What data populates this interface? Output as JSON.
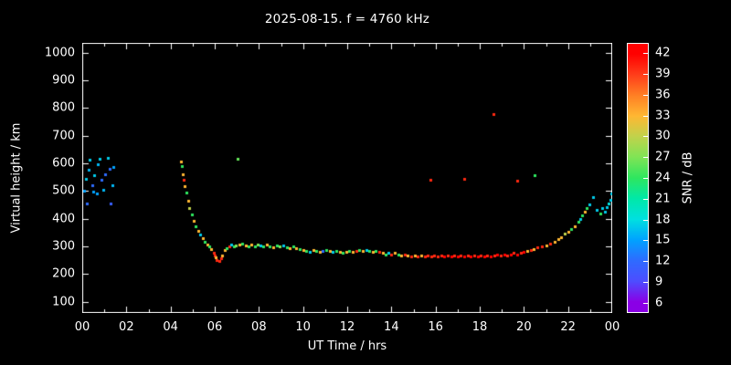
{
  "title": "2025-08-15. f = 4760 kHz",
  "colors": {
    "background": "#000000",
    "foreground": "#ffffff"
  },
  "axes": {
    "x": {
      "label": "UT Time / hrs",
      "range": [
        0,
        24
      ],
      "ticks": [
        {
          "v": 0,
          "label": "00"
        },
        {
          "v": 2,
          "label": "02"
        },
        {
          "v": 4,
          "label": "04"
        },
        {
          "v": 6,
          "label": "06"
        },
        {
          "v": 8,
          "label": "08"
        },
        {
          "v": 10,
          "label": "10"
        },
        {
          "v": 12,
          "label": "12"
        },
        {
          "v": 14,
          "label": "14"
        },
        {
          "v": 16,
          "label": "16"
        },
        {
          "v": 18,
          "label": "18"
        },
        {
          "v": 20,
          "label": "20"
        },
        {
          "v": 22,
          "label": "22"
        },
        {
          "v": 24,
          "label": "00"
        }
      ],
      "minor_tick_step": 1
    },
    "y": {
      "label": "Virtual height / km",
      "range": [
        60,
        1035
      ],
      "ticks": [
        100,
        200,
        300,
        400,
        500,
        600,
        700,
        800,
        900,
        1000
      ]
    }
  },
  "colorbar": {
    "label": "SNR / dB",
    "range": [
      4.5,
      43.5
    ],
    "ticks": [
      6,
      9,
      12,
      15,
      18,
      21,
      24,
      27,
      30,
      33,
      36,
      39,
      42
    ],
    "stops": [
      [
        6,
        "#8a00e6"
      ],
      [
        9,
        "#4d4dff"
      ],
      [
        12,
        "#2e6bff"
      ],
      [
        15,
        "#00a2ff"
      ],
      [
        18,
        "#00e0e0"
      ],
      [
        21,
        "#00e8a8"
      ],
      [
        24,
        "#2ee65f"
      ],
      [
        27,
        "#7fe455"
      ],
      [
        30,
        "#c0d24b"
      ],
      [
        33,
        "#ffb732"
      ],
      [
        36,
        "#ff7f24"
      ],
      [
        39,
        "#ff3d1a"
      ],
      [
        42,
        "#ff0000"
      ]
    ]
  },
  "chart_data": {
    "type": "scatter",
    "title": "2025-08-15. f = 4760 kHz",
    "xlabel": "UT Time / hrs",
    "ylabel": "Virtual height / km",
    "colorbar_label": "SNR / dB",
    "xlim": [
      0,
      24
    ],
    "ylim": [
      60,
      1035
    ],
    "snr_lim": [
      4.5,
      43.5
    ],
    "grid": false,
    "point_format": "[ut_hours, virtual_height_km, snr_db]",
    "points": [
      [
        0.1,
        500,
        15
      ],
      [
        0.15,
        545,
        17
      ],
      [
        0.2,
        455,
        12
      ],
      [
        0.3,
        578,
        16
      ],
      [
        0.35,
        612,
        17
      ],
      [
        0.45,
        520,
        12
      ],
      [
        0.5,
        498,
        15
      ],
      [
        0.55,
        556,
        17
      ],
      [
        0.65,
        490,
        15
      ],
      [
        0.7,
        596,
        16
      ],
      [
        0.78,
        616,
        17
      ],
      [
        0.85,
        540,
        12
      ],
      [
        0.95,
        505,
        16
      ],
      [
        1.05,
        560,
        12
      ],
      [
        1.15,
        620,
        17
      ],
      [
        1.25,
        582,
        12
      ],
      [
        1.3,
        455,
        11
      ],
      [
        1.35,
        522,
        16
      ],
      [
        1.4,
        588,
        15
      ],
      [
        4.45,
        608,
        33
      ],
      [
        4.5,
        590,
        24
      ],
      [
        4.55,
        562,
        33
      ],
      [
        4.6,
        540,
        40
      ],
      [
        4.62,
        518,
        33
      ],
      [
        4.7,
        494,
        24
      ],
      [
        4.78,
        465,
        33
      ],
      [
        4.85,
        440,
        30
      ],
      [
        4.95,
        415,
        24
      ],
      [
        5.05,
        392,
        33
      ],
      [
        5.15,
        372,
        24
      ],
      [
        5.25,
        356,
        33
      ],
      [
        5.35,
        342,
        17
      ],
      [
        5.45,
        330,
        33
      ],
      [
        5.55,
        318,
        24
      ],
      [
        5.65,
        308,
        33
      ],
      [
        5.75,
        299,
        24
      ],
      [
        5.85,
        289,
        33
      ],
      [
        5.95,
        278,
        40
      ],
      [
        6.0,
        268,
        40
      ],
      [
        6.05,
        260,
        33
      ],
      [
        6.1,
        252,
        40
      ],
      [
        6.2,
        249,
        40
      ],
      [
        6.3,
        259,
        40
      ],
      [
        6.35,
        268,
        33
      ],
      [
        6.45,
        288,
        33
      ],
      [
        6.55,
        295,
        24
      ],
      [
        6.65,
        301,
        40
      ],
      [
        6.75,
        306,
        17
      ],
      [
        6.85,
        299,
        24
      ],
      [
        6.95,
        303,
        27
      ],
      [
        7.05,
        618,
        26
      ],
      [
        7.1,
        306,
        33
      ],
      [
        7.25,
        309,
        24
      ],
      [
        7.4,
        303,
        33
      ],
      [
        7.55,
        299,
        24
      ],
      [
        7.65,
        306,
        33
      ],
      [
        7.8,
        301,
        24
      ],
      [
        7.95,
        308,
        27
      ],
      [
        8.05,
        304,
        17
      ],
      [
        8.2,
        299,
        24
      ],
      [
        8.35,
        306,
        33
      ],
      [
        8.5,
        301,
        24
      ],
      [
        8.65,
        297,
        33
      ],
      [
        8.8,
        303,
        24
      ],
      [
        8.95,
        300,
        27
      ],
      [
        9.1,
        305,
        17
      ],
      [
        9.25,
        298,
        24
      ],
      [
        9.4,
        294,
        33
      ],
      [
        9.55,
        299,
        24
      ],
      [
        9.7,
        295,
        33
      ],
      [
        9.85,
        291,
        24
      ],
      [
        10.0,
        288,
        33
      ],
      [
        10.15,
        285,
        24
      ],
      [
        10.3,
        282,
        17
      ],
      [
        10.45,
        288,
        33
      ],
      [
        10.6,
        284,
        24
      ],
      [
        10.75,
        280,
        33
      ],
      [
        10.9,
        284,
        12
      ],
      [
        11.05,
        288,
        24
      ],
      [
        11.2,
        284,
        33
      ],
      [
        11.35,
        280,
        17
      ],
      [
        11.5,
        284,
        24
      ],
      [
        11.65,
        280,
        33
      ],
      [
        11.8,
        276,
        24
      ],
      [
        11.95,
        280,
        33
      ],
      [
        12.1,
        284,
        24
      ],
      [
        12.25,
        280,
        33
      ],
      [
        12.4,
        285,
        40
      ],
      [
        12.55,
        288,
        24
      ],
      [
        12.7,
        284,
        33
      ],
      [
        12.85,
        288,
        17
      ],
      [
        13.0,
        284,
        24
      ],
      [
        13.15,
        280,
        33
      ],
      [
        13.3,
        284,
        24
      ],
      [
        13.45,
        280,
        40
      ],
      [
        13.6,
        276,
        33
      ],
      [
        13.75,
        272,
        24
      ],
      [
        13.85,
        276,
        17
      ],
      [
        14.0,
        272,
        40
      ],
      [
        14.15,
        276,
        33
      ],
      [
        14.3,
        272,
        24
      ],
      [
        14.45,
        268,
        33
      ],
      [
        14.6,
        272,
        40
      ],
      [
        14.75,
        268,
        33
      ],
      [
        14.9,
        264,
        40
      ],
      [
        15.05,
        268,
        33
      ],
      [
        15.2,
        264,
        40
      ],
      [
        15.35,
        268,
        33
      ],
      [
        15.5,
        264,
        40
      ],
      [
        15.65,
        268,
        40
      ],
      [
        15.8,
        264,
        40
      ],
      [
        15.95,
        268,
        40
      ],
      [
        16.1,
        264,
        40
      ],
      [
        16.25,
        268,
        40
      ],
      [
        16.4,
        264,
        42
      ],
      [
        16.55,
        268,
        40
      ],
      [
        16.7,
        264,
        42
      ],
      [
        16.85,
        268,
        40
      ],
      [
        17.0,
        264,
        42
      ],
      [
        17.15,
        268,
        40
      ],
      [
        17.3,
        264,
        42
      ],
      [
        17.45,
        268,
        40
      ],
      [
        17.6,
        264,
        42
      ],
      [
        17.75,
        268,
        40
      ],
      [
        17.9,
        264,
        42
      ],
      [
        18.05,
        268,
        40
      ],
      [
        18.2,
        264,
        42
      ],
      [
        18.35,
        268,
        40
      ],
      [
        18.5,
        264,
        42
      ],
      [
        18.65,
        268,
        40
      ],
      [
        18.8,
        272,
        42
      ],
      [
        18.95,
        268,
        40
      ],
      [
        19.1,
        272,
        42
      ],
      [
        19.25,
        268,
        40
      ],
      [
        19.4,
        272,
        42
      ],
      [
        19.55,
        276,
        40
      ],
      [
        19.7,
        272,
        42
      ],
      [
        19.85,
        276,
        40
      ],
      [
        20.0,
        280,
        42
      ],
      [
        20.15,
        284,
        33
      ],
      [
        20.3,
        288,
        40
      ],
      [
        20.45,
        292,
        33
      ],
      [
        20.6,
        296,
        40
      ],
      [
        15.78,
        540,
        40
      ],
      [
        17.3,
        544,
        40
      ],
      [
        18.6,
        778,
        40
      ],
      [
        19.68,
        536,
        40
      ],
      [
        20.5,
        558,
        24
      ],
      [
        20.8,
        300,
        40
      ],
      [
        21.0,
        305,
        33
      ],
      [
        21.2,
        311,
        40
      ],
      [
        21.4,
        318,
        33
      ],
      [
        21.55,
        326,
        33
      ],
      [
        21.7,
        335,
        33
      ],
      [
        21.85,
        345,
        30
      ],
      [
        22.0,
        352,
        33
      ],
      [
        22.15,
        362,
        24
      ],
      [
        22.3,
        374,
        33
      ],
      [
        22.45,
        388,
        24
      ],
      [
        22.55,
        400,
        17
      ],
      [
        22.65,
        412,
        24
      ],
      [
        22.75,
        424,
        33
      ],
      [
        22.85,
        438,
        24
      ],
      [
        22.95,
        452,
        17
      ],
      [
        23.15,
        478,
        17
      ],
      [
        23.3,
        432,
        17
      ],
      [
        23.45,
        420,
        24
      ],
      [
        23.55,
        438,
        17
      ],
      [
        23.65,
        426,
        17
      ],
      [
        23.75,
        442,
        17
      ],
      [
        23.85,
        456,
        18
      ],
      [
        23.9,
        470,
        17
      ],
      [
        23.95,
        492,
        17
      ]
    ]
  }
}
